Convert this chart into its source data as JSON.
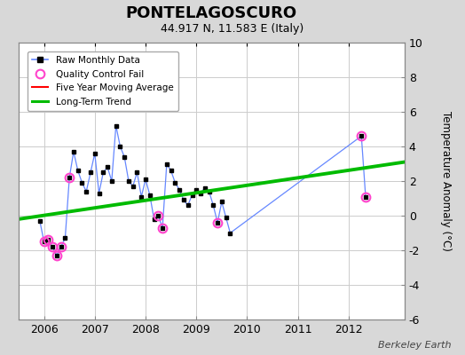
{
  "title": "PONTELAGOSCURO",
  "subtitle": "44.917 N, 11.583 E (Italy)",
  "ylabel": "Temperature Anomaly (°C)",
  "credit": "Berkeley Earth",
  "ylim": [
    -6,
    10
  ],
  "xlim": [
    2005.5,
    2013.1
  ],
  "xticks": [
    2006,
    2007,
    2008,
    2009,
    2010,
    2011,
    2012
  ],
  "yticks": [
    -6,
    -4,
    -2,
    0,
    2,
    4,
    6,
    8,
    10
  ],
  "plot_bg": "#ffffff",
  "fig_bg": "#d8d8d8",
  "raw_x": [
    2005.917,
    2006.0,
    2006.083,
    2006.167,
    2006.25,
    2006.333,
    2006.417,
    2006.5,
    2006.583,
    2006.667,
    2006.75,
    2006.833,
    2006.917,
    2007.0,
    2007.083,
    2007.167,
    2007.25,
    2007.333,
    2007.417,
    2007.5,
    2007.583,
    2007.667,
    2007.75,
    2007.833,
    2007.917,
    2008.0,
    2008.083,
    2008.167,
    2008.25,
    2008.333,
    2008.417,
    2008.5,
    2008.583,
    2008.667,
    2008.75,
    2008.833,
    2008.917,
    2009.0,
    2009.083,
    2009.167,
    2009.25,
    2009.333,
    2009.417,
    2009.5,
    2009.583,
    2009.667,
    2012.25,
    2012.333
  ],
  "raw_y": [
    -0.3,
    -1.5,
    -1.4,
    -1.8,
    -2.3,
    -1.8,
    -1.3,
    2.2,
    3.7,
    2.6,
    1.9,
    1.4,
    2.5,
    3.6,
    1.3,
    2.5,
    2.8,
    2.0,
    5.2,
    4.0,
    3.4,
    2.0,
    1.7,
    2.5,
    1.1,
    2.1,
    1.2,
    -0.2,
    0.0,
    -0.7,
    3.0,
    2.6,
    1.9,
    1.5,
    0.9,
    0.6,
    1.2,
    1.5,
    1.3,
    1.6,
    1.4,
    0.6,
    -0.4,
    0.8,
    -0.1,
    -1.0,
    4.6,
    1.1
  ],
  "qc_fail_x": [
    2006.0,
    2006.083,
    2006.167,
    2006.25,
    2006.333,
    2006.5,
    2008.25,
    2008.333,
    2009.417,
    2012.25,
    2012.333
  ],
  "qc_fail_y": [
    -1.5,
    -1.4,
    -1.8,
    -2.3,
    -1.8,
    2.2,
    0.0,
    -0.7,
    -0.4,
    4.6,
    1.1
  ],
  "trend_x": [
    2005.5,
    2013.1
  ],
  "trend_y": [
    -0.2,
    3.1
  ],
  "raw_line_color": "#6688ff",
  "raw_dot_color": "#000000",
  "qc_color": "#ff44cc",
  "trend_color": "#00bb00",
  "ma_color": "#ff0000",
  "grid_color": "#cccccc"
}
